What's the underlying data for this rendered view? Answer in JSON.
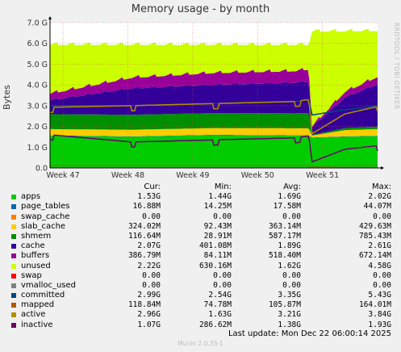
{
  "title": "Memory usage - by month",
  "side_label": "RRDTOOL / TOBI OETIKER",
  "footer": "Munin 2.0.33-1",
  "last_update": "Last update:  Mon Dec 22 06:00:14 2025",
  "legend_headers": {
    "cur": "Cur:",
    "min": "Min:",
    "avg": "Avg:",
    "max": "Max:"
  },
  "chart_data": {
    "type": "area",
    "title": "Memory usage - by month",
    "ylabel": "Bytes",
    "xlabel": "",
    "ylim": [
      0,
      7.0
    ],
    "yticks": [
      "0.0",
      "1.0 G",
      "2.0 G",
      "3.0 G",
      "4.0 G",
      "5.0 G",
      "6.0 G",
      "7.0 G"
    ],
    "x_ticks": [
      "Week 47",
      "Week 48",
      "Week 49",
      "Week 50",
      "Week 51"
    ],
    "grid": true,
    "units": "GB",
    "stack_order": [
      "apps",
      "page_tables",
      "swap_cache",
      "slab_cache",
      "shmem",
      "cache",
      "buffers",
      "unused"
    ],
    "profile": [
      {
        "t": 0.0,
        "apps": 1.55,
        "page_tables": 0.02,
        "swap_cache": 0.0,
        "slab_cache": 0.3,
        "shmem": 0.72,
        "cache": 0.7,
        "buffers": 0.35,
        "unused": 2.36,
        "committed": 3.0,
        "mapped": 0.12,
        "active": 2.92,
        "inactive": 1.6
      },
      {
        "t": 0.25,
        "apps": 1.5,
        "page_tables": 0.02,
        "swap_cache": 0.0,
        "slab_cache": 0.32,
        "shmem": 0.72,
        "cache": 1.3,
        "buffers": 0.55,
        "unused": 1.59,
        "committed": 3.0,
        "mapped": 0.12,
        "active": 3.0,
        "inactive": 1.25
      },
      {
        "t": 0.5,
        "apps": 1.58,
        "page_tables": 0.02,
        "swap_cache": 0.0,
        "slab_cache": 0.32,
        "shmem": 0.72,
        "cache": 1.4,
        "buffers": 0.6,
        "unused": 1.36,
        "committed": 3.1,
        "mapped": 0.12,
        "active": 3.1,
        "inactive": 1.35
      },
      {
        "t": 0.75,
        "apps": 1.55,
        "page_tables": 0.02,
        "swap_cache": 0.0,
        "slab_cache": 0.34,
        "shmem": 0.72,
        "cache": 1.5,
        "buffers": 0.6,
        "unused": 1.27,
        "committed": 3.2,
        "mapped": 0.12,
        "active": 3.2,
        "inactive": 1.45
      },
      {
        "t": 0.79,
        "apps": 1.55,
        "page_tables": 0.02,
        "swap_cache": 0.0,
        "slab_cache": 0.34,
        "shmem": 0.73,
        "cache": 1.55,
        "buffers": 0.62,
        "unused": 1.19,
        "committed": 3.3,
        "mapped": 0.12,
        "active": 3.3,
        "inactive": 1.55
      },
      {
        "t": 0.8,
        "apps": 1.45,
        "page_tables": 0.02,
        "swap_cache": 0.0,
        "slab_cache": 0.09,
        "shmem": 0.03,
        "cache": 0.4,
        "buffers": 0.08,
        "unused": 4.58,
        "committed": 2.55,
        "mapped": 0.08,
        "active": 1.65,
        "inactive": 0.29
      },
      {
        "t": 0.9,
        "apps": 1.5,
        "page_tables": 0.02,
        "swap_cache": 0.0,
        "slab_cache": 0.3,
        "shmem": 0.1,
        "cache": 1.5,
        "buffers": 0.3,
        "unused": 2.93,
        "committed": 2.8,
        "mapped": 0.11,
        "active": 2.6,
        "inactive": 0.9
      },
      {
        "t": 1.0,
        "apps": 1.53,
        "page_tables": 0.02,
        "swap_cache": 0.0,
        "slab_cache": 0.32,
        "shmem": 0.12,
        "cache": 2.07,
        "buffers": 0.39,
        "unused": 2.22,
        "committed": 2.99,
        "mapped": 0.12,
        "active": 2.96,
        "inactive": 1.07
      }
    ],
    "series": [
      {
        "name": "apps",
        "color": "#00cc00",
        "type": "area",
        "cur": "1.53G",
        "min": "1.44G",
        "avg": "1.69G",
        "max": "2.02G"
      },
      {
        "name": "page_tables",
        "color": "#0066b3",
        "type": "area",
        "cur": "16.88M",
        "min": "14.25M",
        "avg": "17.58M",
        "max": "44.07M"
      },
      {
        "name": "swap_cache",
        "color": "#ff8000",
        "type": "area",
        "cur": "0.00",
        "min": "0.00",
        "avg": "0.00",
        "max": "0.00"
      },
      {
        "name": "slab_cache",
        "color": "#ffcc00",
        "type": "area",
        "cur": "324.02M",
        "min": "92.43M",
        "avg": "363.14M",
        "max": "429.63M"
      },
      {
        "name": "shmem",
        "color": "#008f00",
        "type": "area",
        "cur": "116.64M",
        "min": "28.91M",
        "avg": "587.17M",
        "max": "785.43M"
      },
      {
        "name": "cache",
        "color": "#330099",
        "type": "area",
        "cur": "2.07G",
        "min": "401.08M",
        "avg": "1.89G",
        "max": "2.61G"
      },
      {
        "name": "buffers",
        "color": "#990099",
        "type": "area",
        "cur": "386.79M",
        "min": "84.11M",
        "avg": "518.40M",
        "max": "672.14M"
      },
      {
        "name": "unused",
        "color": "#ccff00",
        "type": "area",
        "cur": "2.22G",
        "min": "630.16M",
        "avg": "1.62G",
        "max": "4.58G"
      },
      {
        "name": "swap",
        "color": "#ff0000",
        "type": "line",
        "cur": "0.00",
        "min": "0.00",
        "avg": "0.00",
        "max": "0.00"
      },
      {
        "name": "vmalloc_used",
        "color": "#808080",
        "type": "line",
        "cur": "0.00",
        "min": "0.00",
        "avg": "0.00",
        "max": "0.00"
      },
      {
        "name": "committed",
        "color": "#00487d",
        "type": "line",
        "cur": "2.99G",
        "min": "2.54G",
        "avg": "3.35G",
        "max": "5.43G"
      },
      {
        "name": "mapped",
        "color": "#b35a00",
        "type": "line",
        "cur": "118.84M",
        "min": "74.78M",
        "avg": "105.87M",
        "max": "164.01M"
      },
      {
        "name": "active",
        "color": "#b38f00",
        "type": "line",
        "cur": "2.96G",
        "min": "1.63G",
        "avg": "3.21G",
        "max": "3.84G"
      },
      {
        "name": "inactive",
        "color": "#6b006b",
        "type": "line",
        "cur": "1.07G",
        "min": "286.62M",
        "avg": "1.38G",
        "max": "1.93G"
      }
    ]
  }
}
